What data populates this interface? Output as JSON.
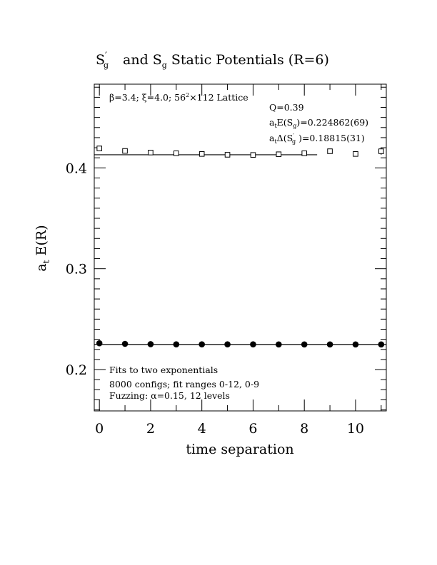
{
  "chart_data": {
    "type": "scatter",
    "title": "S'g  and Sg Static Potentials (R=6)",
    "xlabel": "time separation",
    "ylabel": "a_t E(R)",
    "xlim": [
      -0.2,
      11.2
    ],
    "ylim": [
      0.159,
      0.483
    ],
    "x_ticks": [
      0,
      2,
      4,
      6,
      8,
      10
    ],
    "y_ticks": [
      0.2,
      0.3,
      0.4
    ],
    "y_tick_labels": [
      "0.2",
      "0.3",
      "0.4"
    ],
    "x_tick_labels": [
      "0",
      "2",
      "4",
      "6",
      "8",
      "10"
    ],
    "grid": false,
    "annotations": {
      "lattice": "β=3.4; ξ=4.0; 56²×112 Lattice",
      "q": "Q=0.39",
      "energy": "a_tE(S_g)=0.224862(69)",
      "delta": "a_tΔ(S'_g)=0.18815(31)",
      "fits": "Fits to two exponentials",
      "configs": "8000 configs; fit ranges 0-12, 0-9",
      "fuzzing": "Fuzzing: α=0.15, 12 levels"
    },
    "series": [
      {
        "marker": "circle-filled",
        "x": [
          0,
          1,
          2,
          3,
          4,
          5,
          6,
          7,
          8,
          9,
          10,
          11
        ],
        "y": [
          0.2261,
          0.2255,
          0.2252,
          0.225,
          0.225,
          0.225,
          0.225,
          0.2249,
          0.2249,
          0.2249,
          0.2249,
          0.2249
        ],
        "err": [
          0.0008,
          0.0004,
          0.0003,
          0.0003,
          0.0003,
          0.0003,
          0.0003,
          0.0003,
          0.0003,
          0.0003,
          0.0003,
          0.0003
        ]
      },
      {
        "marker": "square-open",
        "x": [
          0,
          1,
          2,
          3,
          4,
          5,
          6,
          7,
          8,
          9,
          10,
          11
        ],
        "y": [
          0.4193,
          0.4168,
          0.4152,
          0.4145,
          0.4138,
          0.413,
          0.4128,
          0.4135,
          0.4145,
          0.4165,
          0.4138,
          0.4165
        ],
        "err": [
          0.001,
          0.001,
          0.001,
          0.001,
          0.001,
          0.001,
          0.0012,
          0.0014,
          0.0016,
          0.0022,
          0.0024,
          0.0035
        ]
      }
    ],
    "fit_lines": [
      {
        "x": [
          -0.2,
          11.2
        ],
        "y": [
          0.224862,
          0.224862
        ]
      },
      {
        "x": [
          -0.2,
          8.5
        ],
        "y": [
          0.413012,
          0.413012
        ]
      }
    ]
  }
}
